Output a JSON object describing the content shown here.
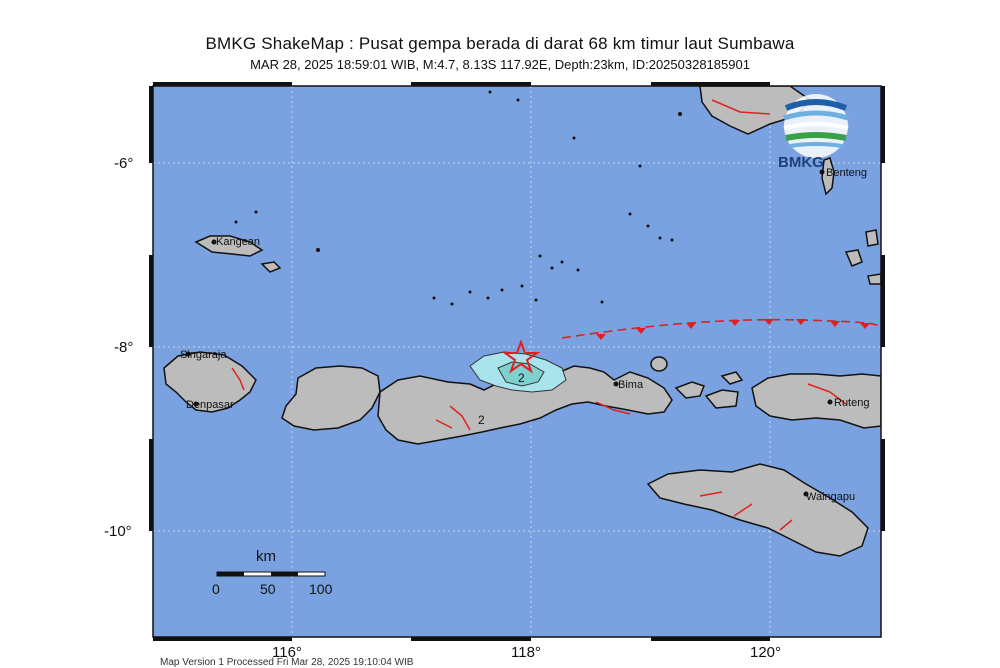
{
  "title": "BMKG ShakeMap : Pusat gempa berada di darat 68 km timur laut Sumbawa",
  "subtitle": "MAR 28, 2025 18:59:01 WIB, M:4.7, 8.13S 117.92E, Depth:23km, ID:20250328185901",
  "event": {
    "magnitude": 4.7,
    "latitude": -8.13,
    "longitude": 117.92,
    "depth_km": 23,
    "datetime": "MAR 28, 2025 18:59:01 WIB",
    "id": "20250328185901"
  },
  "logo": {
    "text": "BMKG",
    "colors": [
      "#1e5fa8",
      "#38a047",
      "#6fb0e0"
    ]
  },
  "axes": {
    "lat_labels": [
      {
        "text": "-6°",
        "value": -6
      },
      {
        "text": "-8°",
        "value": -8
      },
      {
        "text": "-10°",
        "value": -10
      }
    ],
    "lon_labels": [
      {
        "text": "116°",
        "value": 116
      },
      {
        "text": "118°",
        "value": 118
      },
      {
        "text": "120°",
        "value": 120
      }
    ],
    "lon_range": [
      114.8,
      120.9
    ],
    "lat_range": [
      -5.2,
      -11.2
    ]
  },
  "places": [
    {
      "name": "Kangean",
      "lon": 115.4,
      "lat": -6.9
    },
    {
      "name": "Singaraja",
      "lon": 115.1,
      "lat": -8.1
    },
    {
      "name": "Denpasar",
      "lon": 115.2,
      "lat": -8.65
    },
    {
      "name": "Bima",
      "lon": 118.72,
      "lat": -8.45
    },
    {
      "name": "Ruteng",
      "lon": 120.47,
      "lat": -8.6
    },
    {
      "name": "Waingapu",
      "lon": 120.27,
      "lat": -9.65
    },
    {
      "name": "Benteng",
      "lon": 120.45,
      "lat": -6.12
    }
  ],
  "intensity_labels": [
    "2",
    "2"
  ],
  "scale_bar": {
    "unit": "km",
    "ticks": [
      "0",
      "50",
      "100"
    ]
  },
  "footer": "Map Version 1 Processed Fri Mar 28, 2025 19:10:04 WIB",
  "colors": {
    "sea": "#7ba2e0",
    "land": "#b8b8b8",
    "fault": "#e02020",
    "epicenter": "#e02020",
    "intensity_low": "#a9e4ec",
    "intensity_mid": "#7fd1cf"
  }
}
